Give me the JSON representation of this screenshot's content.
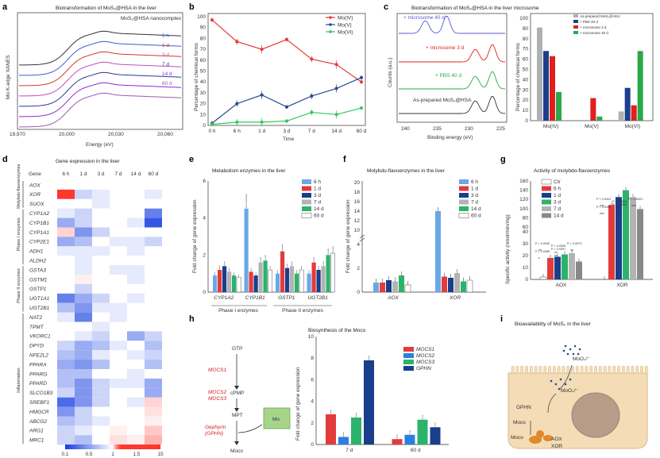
{
  "panels": {
    "a": {
      "label": "a",
      "title": "Biotransformation of MoS₂@HSA in the liver",
      "legend": "MoS₂@HSA nanocomplex",
      "ylabel": "Mo K-edge XANES",
      "xlabel": "Energy (eV)",
      "xticks": [
        "19,970",
        "20,000",
        "20,030",
        "20,060"
      ],
      "times": [
        "6 h",
        "1 d",
        "3 d",
        "7 d",
        "14 d",
        "60 d"
      ],
      "colors": [
        "#333333",
        "#3b5bd6",
        "#d33a2c",
        "#c04fb8",
        "#2b3a90",
        "#8a2bd6",
        "#9b59b6"
      ]
    },
    "b": {
      "label": "b",
      "ylabel": "Percentage of chemical forms",
      "xlabel": "Time",
      "categories": [
        "0 h",
        "6 h",
        "1 d",
        "3 d",
        "7 d",
        "14 d",
        "60 d"
      ],
      "yticks": [
        "0",
        "10",
        "20",
        "30",
        "40",
        "50",
        "60",
        "70",
        "80",
        "90",
        "100"
      ],
      "series": [
        {
          "name": "Mo(IV)",
          "color": "#e23b3b",
          "values": [
            97,
            77,
            70,
            79,
            61,
            56,
            40
          ]
        },
        {
          "name": "Mo(V)",
          "color": "#2a4a8a",
          "values": [
            2,
            20,
            28,
            17,
            27,
            34,
            44
          ]
        },
        {
          "name": "Mo(VI)",
          "color": "#34c759",
          "values": [
            1,
            3,
            3,
            4,
            12,
            10,
            16
          ]
        }
      ]
    },
    "c": {
      "label": "c",
      "title": "Biotransformation of MoS₂@HSA in the liver microsome",
      "spectra": [
        "+ microsome 40 d",
        "+ microsome 3 d",
        "+ PBS 40 d",
        "As-prepared MoS₂@HSA"
      ],
      "ylabel": "Counts (a.u.)",
      "xlabel": "Binding energy (eV)",
      "xticks": [
        "240",
        "235",
        "230",
        "225"
      ],
      "bar_ylabel": "Percentage of chemical forms",
      "bar_yticks": [
        "0",
        "10",
        "20",
        "30",
        "40",
        "50",
        "60",
        "70",
        "80",
        "90",
        "100"
      ],
      "bar_categories": [
        "Mo(IV)",
        "Mo(V)",
        "Mo(VI)"
      ],
      "bar_series": [
        {
          "name": "As-prepared MoS₂@HSA",
          "color": "#b0b0b0",
          "values": [
            91,
            0,
            9
          ]
        },
        {
          "name": "+ PBS 40 d",
          "color": "#1c3f8c",
          "values": [
            68,
            0,
            32
          ]
        },
        {
          "name": "+ microsome 3 d",
          "color": "#e0201c",
          "values": [
            63,
            22,
            15
          ]
        },
        {
          "name": "+ microsome 40 d",
          "color": "#2aa84a",
          "values": [
            28,
            4,
            68
          ]
        }
      ]
    },
    "d": {
      "label": "d",
      "title": "Gene expression in the liver",
      "header_gene": "Gene",
      "columns": [
        "6 h",
        "1 d",
        "3 d",
        "7 d",
        "14 d",
        "60 d"
      ],
      "genes": [
        "AOX",
        "XOR",
        "SUOX",
        "CYP1A2",
        "CYP1B1",
        "CYP1A1",
        "CYP2E1",
        "ADH1",
        "ALDH2",
        "GSTA3",
        "GSTM1",
        "GSTP1",
        "UGT1A1",
        "UGT2B1",
        "NAT2",
        "TPMT",
        "VKORC1",
        "DPYD",
        "NFE2L2",
        "PPARA",
        "PPARG",
        "PPARD",
        "SLCO1B3",
        "SREBF1",
        "HMGCR",
        "ABCG2",
        "ARG1",
        "MRC1"
      ],
      "matrix": [
        [
          1.0,
          1.0,
          1.0,
          1.0,
          1.0,
          1.0
        ],
        [
          13.0,
          0.8,
          0.9,
          1.0,
          1.0,
          0.9
        ],
        [
          1.0,
          1.0,
          0.9,
          1.0,
          1.0,
          1.0
        ],
        [
          0.9,
          0.8,
          1.0,
          1.0,
          1.0,
          0.4
        ],
        [
          0.6,
          0.8,
          1.0,
          1.0,
          0.9,
          0.2
        ],
        [
          1.3,
          0.5,
          0.8,
          1.0,
          1.0,
          1.0
        ],
        [
          0.6,
          0.7,
          1.0,
          0.9,
          0.9,
          0.8
        ],
        [
          0.9,
          0.9,
          0.9,
          1.0,
          0.9,
          1.0
        ],
        [
          1.0,
          0.9,
          1.0,
          1.0,
          1.0,
          1.0
        ],
        [
          1.0,
          0.9,
          1.0,
          0.9,
          0.9,
          1.0
        ],
        [
          1.0,
          1.1,
          1.0,
          1.0,
          0.9,
          1.0
        ],
        [
          1.0,
          0.8,
          1.0,
          1.0,
          1.0,
          1.0
        ],
        [
          0.4,
          0.6,
          0.8,
          1.0,
          0.9,
          1.0
        ],
        [
          0.7,
          0.5,
          0.9,
          0.9,
          1.0,
          1.0
        ],
        [
          0.9,
          0.4,
          1.0,
          0.9,
          1.0,
          1.0
        ],
        [
          1.0,
          1.0,
          0.9,
          1.0,
          1.0,
          1.0
        ],
        [
          1.0,
          0.9,
          0.8,
          1.0,
          0.6,
          0.8
        ],
        [
          0.8,
          0.6,
          0.7,
          0.9,
          1.0,
          0.7
        ],
        [
          0.7,
          0.6,
          0.9,
          1.0,
          0.9,
          0.8
        ],
        [
          0.6,
          0.5,
          0.7,
          1.0,
          1.0,
          0.7
        ],
        [
          0.7,
          0.7,
          1.0,
          1.0,
          0.9,
          1.0
        ],
        [
          0.7,
          0.5,
          0.8,
          0.9,
          0.9,
          0.6
        ],
        [
          0.8,
          0.5,
          0.8,
          1.0,
          1.0,
          0.6
        ],
        [
          0.3,
          0.5,
          0.8,
          1.0,
          0.9,
          1.3
        ],
        [
          0.5,
          0.8,
          1.0,
          1.0,
          1.0,
          1.2
        ],
        [
          0.7,
          0.8,
          0.9,
          1.0,
          1.0,
          1.1
        ],
        [
          0.8,
          0.9,
          1.0,
          1.1,
          1.0,
          1.4
        ],
        [
          0.8,
          0.7,
          1.0,
          1.2,
          1.1,
          1.6
        ]
      ],
      "groups": [
        "Molybdo-flavoenzymes",
        "Phase I enzymes",
        "Phase II enzymes",
        "Inflammation"
      ],
      "scale_ticks": [
        "0.1",
        "0.5",
        "1",
        "1.5",
        "15"
      ]
    },
    "e": {
      "label": "e",
      "title": "Metabolism enzymes in the liver",
      "ylabel": "Fold change of gene expression",
      "yticks": [
        "0",
        "2",
        "4",
        "6"
      ],
      "genes": [
        "CYP1A2",
        "CYP1B1",
        "GSTP1",
        "UGT2B1"
      ],
      "groups": [
        "Phase I enzymes",
        "Phase II enzymes"
      ],
      "series_names": [
        "6 h",
        "1 d",
        "3 d",
        "7 d",
        "14 d",
        "60 d"
      ],
      "values": [
        [
          0.9,
          1.2,
          1.4,
          1.1,
          0.9,
          0.8
        ],
        [
          4.5,
          1.1,
          0.9,
          1.6,
          1.7,
          1.2
        ],
        [
          1.0,
          2.2,
          1.3,
          1.4,
          1.0,
          1.2
        ],
        [
          1.0,
          1.6,
          1.2,
          1.4,
          2.0,
          2.1
        ]
      ]
    },
    "f": {
      "label": "f",
      "title": "Molybdo-flavoenzymes in the liver",
      "ylabel": "Fold change of gene expression",
      "yticks": [
        "0",
        "2",
        "4",
        "10",
        "12",
        "14",
        "16",
        "18",
        "20"
      ],
      "genes": [
        "AOX",
        "XOR"
      ],
      "series_names": [
        "6 h",
        "1 d",
        "3 d",
        "7 d",
        "14 d",
        "60 d"
      ],
      "values": [
        [
          0.8,
          0.8,
          1.0,
          0.9,
          1.4,
          0.6
        ],
        [
          14.0,
          1.3,
          1.2,
          1.6,
          0.9,
          1.0
        ]
      ]
    },
    "g": {
      "label": "g",
      "title": "Activity of molybdo-flavoenzymes",
      "ylabel": "Specific activity (nmol/min/mg)",
      "yticks": [
        "0",
        "10",
        "20",
        "30",
        "40",
        "60",
        "80",
        "100",
        "120",
        "140",
        "160"
      ],
      "groups": [
        "AOX",
        "XOR"
      ],
      "series_names": [
        "Ctr",
        "6 h",
        "1 d",
        "3 d",
        "7 d",
        "14 d"
      ],
      "values": [
        [
          2,
          18,
          19,
          21,
          22,
          15
        ],
        [
          0,
          108,
          125,
          140,
          125,
          99
        ]
      ],
      "pvalues": [
        "P = 0.0030",
        "P = 0.0059",
        "P = 0.0073",
        "P = 0.0285",
        "P = 0.0057",
        "P < 0.0001",
        "P < 0.0001",
        "P < 0.0001",
        "P = 0.0005",
        "P = 0.0002"
      ],
      "stars": [
        "**",
        "**",
        "**",
        "*",
        "**",
        "***",
        "***",
        "***",
        "***",
        "***"
      ]
    },
    "h": {
      "label": "h",
      "title": "Biosynthesis of the Moco",
      "pathway": [
        "GTP",
        "cPMP",
        "MPT",
        "Moco"
      ],
      "enzymes": [
        "MOCS1",
        "MOCS2",
        "MOCS3",
        "Gephyrin",
        "(GPHN)"
      ],
      "mo_label": "Mo",
      "ylabel": "Fold change of gene expression",
      "yticks": [
        "0",
        "2",
        "4",
        "6",
        "8",
        "10"
      ],
      "categories": [
        "7 d",
        "60 d"
      ],
      "series": [
        {
          "name": "MOCS1",
          "color": "#e33b3b",
          "values": [
            2.8,
            0.5
          ]
        },
        {
          "name": "MOCS2",
          "color": "#2b7fe0",
          "values": [
            0.7,
            0.9
          ]
        },
        {
          "name": "MOCS3",
          "color": "#2bb36b",
          "values": [
            2.5,
            2.3
          ]
        },
        {
          "name": "GPHN",
          "color": "#1a3e8c",
          "values": [
            7.8,
            1.6
          ]
        }
      ]
    },
    "i": {
      "label": "i",
      "title": "Bioavailability of MoS₂ in the liver",
      "labels": [
        "MoO₄²⁻",
        "MoO₄²⁻",
        "GPHN",
        "Moco",
        "Moco",
        "AOX",
        "XOR"
      ]
    }
  }
}
